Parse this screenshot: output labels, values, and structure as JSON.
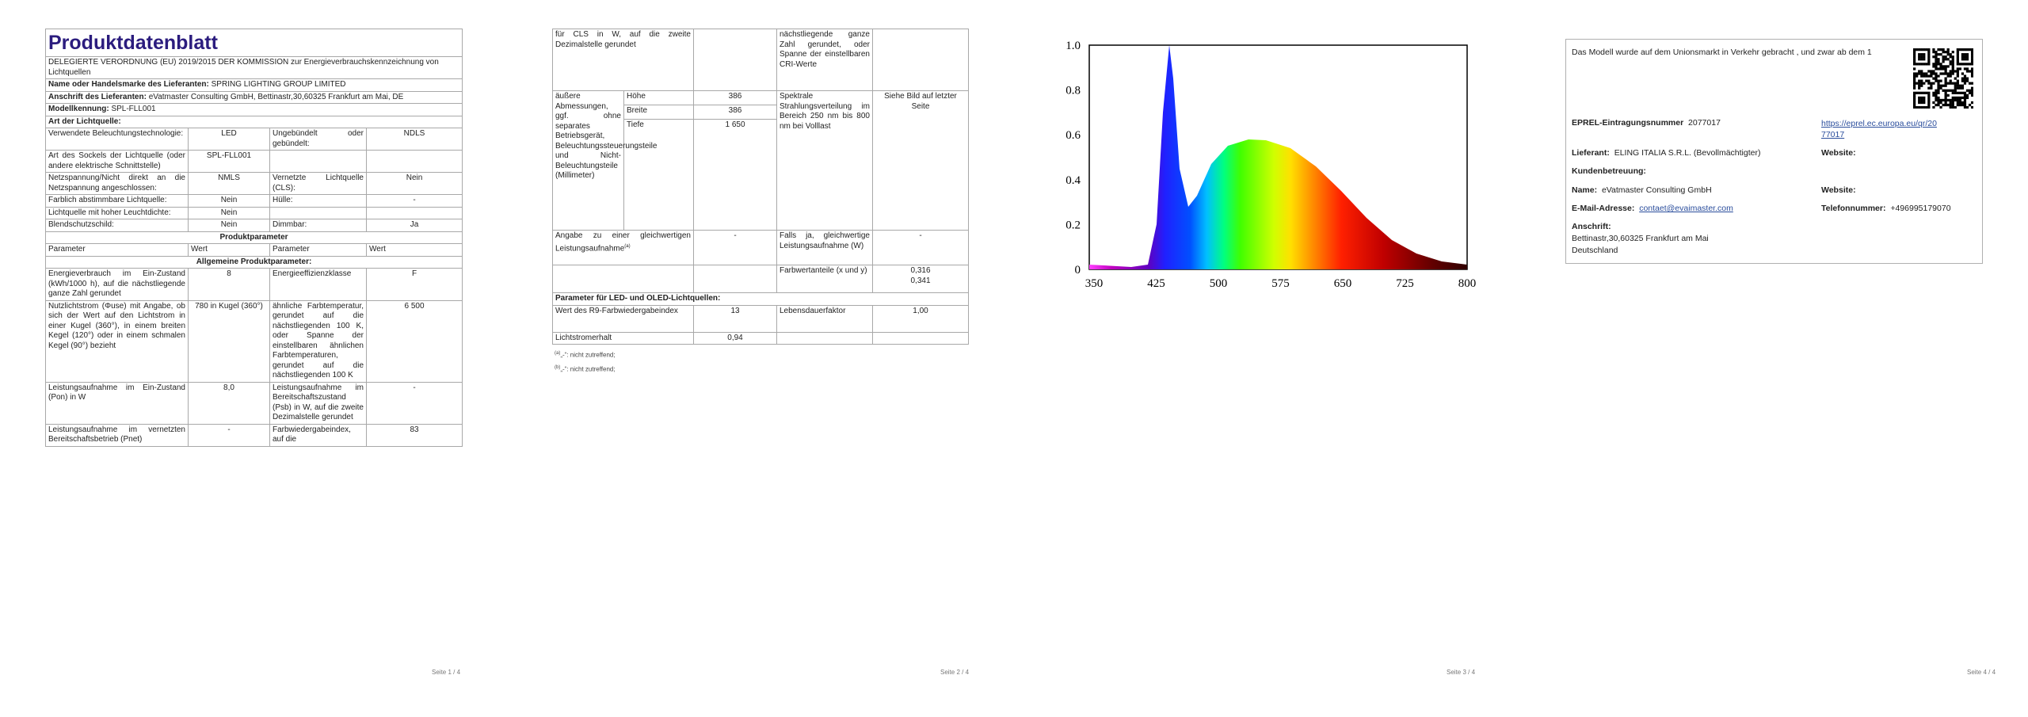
{
  "page1": {
    "title": "Produktdatenblatt",
    "regulation": "DELEGIERTE VERORDNUNG (EU) 2019/2015 DER KOMMISSION zur Energieverbrauchskennzeichnung von Lichtquellen",
    "supplier": {
      "label": "Name oder Handelsmarke des Lieferanten:",
      "value": "SPRING LIGHTING GROUP LIMITED"
    },
    "address": {
      "label": "Anschrift des Lieferanten:",
      "value": "eVatmaster Consulting GmbH, Bettinastr,30,60325 Frankfurt am Mai, DE"
    },
    "model": {
      "label": "Modellkennung:",
      "value": "SPL-FLL001"
    },
    "source_type_heading": "Art der Lichtquelle:",
    "source_rows": [
      [
        "Verwendete Beleuchtungstechnologie:",
        "LED",
        "Ungebündelt oder gebündelt:",
        "NDLS"
      ],
      [
        "Art des Sockels der Lichtquelle (oder andere elektrische Schnittstelle)",
        "SPL-FLL001",
        null,
        null
      ],
      [
        "Netzspannung/Nicht direkt an die Netzspannung angeschlossen:",
        "NMLS",
        "Vernetzte Lichtquelle (CLS):",
        "Nein"
      ],
      [
        "Farblich abstimmbare Lichtquelle:",
        "Nein",
        "Hülle:",
        "-"
      ],
      [
        "Lichtquelle mit hoher Leuchtdichte:",
        "Nein",
        null,
        null
      ],
      [
        "Blendschutzschild:",
        "Nein",
        "Dimmbar:",
        "Ja"
      ]
    ],
    "params_heading": "Produktparameter",
    "params_header": [
      "Parameter",
      "Wert",
      "Parameter",
      "Wert"
    ],
    "general_heading": "Allgemeine Produktparameter:",
    "param_rows": [
      [
        "Energieverbrauch im Ein-Zustand (kWh/1000 h), auf die nächstliegende ganze Zahl gerundet",
        "8",
        "Energieeffizienzklasse",
        "F"
      ],
      [
        "Nutzlichtstrom (Φuse) mit Angabe, ob sich der Wert auf den Lichtstrom in einer Kugel (360°), in einem breiten Kegel (120°) oder in einem schmalen Kegel (90°) bezieht",
        "780 in Kugel (360°)",
        "ähnliche Farbtemperatur, gerundet auf die nächstliegenden 100 K, oder Spanne der einstellbaren ähnlichen Farbtemperaturen, gerundet auf die nächstliegenden 100 K",
        "6 500"
      ],
      [
        "Leistungsaufnahme im Ein-Zustand (Pon) in W",
        "8,0",
        "Leistungsaufnahme im Bereitschaftszustand (Psb) in W, auf die zweite Dezimalstelle gerundet",
        "-"
      ],
      [
        "Leistungsaufnahme im vernetzten Bereitschaftsbetrieb (Pnet)",
        "-",
        "Farbwiedergabeindex, auf die",
        "83"
      ]
    ],
    "footer": "Seite 1 / 4"
  },
  "page2": {
    "cls_continued": "für CLS in W, auf die zweite Dezimalstelle gerundet",
    "cri_continued": "nächstliegende ganze Zahl gerundet, oder Spanne der einstellbaren CRI-Werte",
    "dimensions": {
      "label": "äußere Abmessungen, ggf. ohne separates Betriebsgerät, Beleuchtungssteuerungsteile und Nicht-Beleuchtungsteile (Millimeter)",
      "items": [
        {
          "name": "Höhe",
          "value": "386"
        },
        {
          "name": "Breite",
          "value": "386"
        },
        {
          "name": "Tiefe",
          "value": "1 650"
        }
      ]
    },
    "spectrum": {
      "label": "Spektrale Strahlungsverteilung im Bereich 250 nm bis 800 nm bei Volllast",
      "value": "Siehe Bild auf letzter Seite"
    },
    "equivalent": {
      "label": "Angabe zu einer gleichwertigen Leistungsaufnahme",
      "note_mark": "(a)",
      "value": "-",
      "power_label": "Falls ja, gleichwertige Leistungsaufnahme (W)",
      "power_value": "-"
    },
    "chromaticity": {
      "label": "Farbwertanteile (x und y)",
      "x": "0,316",
      "y": "0,341"
    },
    "led_heading": "Parameter für LED- und OLED-Lichtquellen:",
    "r9": {
      "label": "Wert des R9-Farbwiedergabeindex",
      "value": "13"
    },
    "survival": {
      "label": "Lebensdauerfaktor",
      "value": "1,00"
    },
    "lumen_maintenance": {
      "label": "Lichtstromerhalt",
      "value": "0,94"
    },
    "footnotes": [
      {
        "mark": "(a)",
        "text": "„-“: nicht zutreffend;"
      },
      {
        "mark": "(b)",
        "text": "„-“: nicht zutreffend;"
      }
    ],
    "footer": "Seite 2 / 4"
  },
  "page3": {
    "spectrum_image": {
      "y_labels": [
        "1.0",
        "0.8",
        "0.6",
        "0.4",
        "0.2",
        "0"
      ],
      "x_labels": [
        "350",
        "425",
        "500",
        "575",
        "650",
        "725",
        "800"
      ]
    },
    "footer": "Seite 3 / 4"
  },
  "page4": {
    "market_note": "Das Modell wurde auf dem Unionsmarkt in Verkehr gebracht , und zwar ab dem 1",
    "eprel": {
      "label": "EPREL-Eintragungsnummer",
      "value": "2077017",
      "url": "https://eprel.ec.europa.eu/qr/2077017"
    },
    "supplier": {
      "label": "Lieferant:",
      "value": "ELING ITALIA S.R.L. (Bevollmächtigter)"
    },
    "supplier_website": {
      "label": "Website:"
    },
    "customer_service": "Kundenbetreuung:",
    "contact_name": {
      "label": "Name:",
      "value": "eVatmaster Consulting GmbH"
    },
    "contact_website": {
      "label": "Website:"
    },
    "email": {
      "label": "E-Mail-Adresse:",
      "value": "contaet@evaimaster.com"
    },
    "phone": {
      "label": "Telefonnummer:",
      "value": "+496995179070"
    },
    "address": {
      "label": "Anschrift:",
      "lines": [
        "Bettinastr,30,60325 Frankfurt am Mai",
        "Deutschland"
      ]
    },
    "footer": "Seite 4 / 4"
  }
}
